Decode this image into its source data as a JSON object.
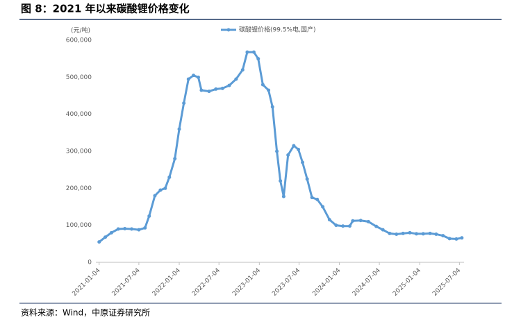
{
  "title": "图 8：2021 年以来碳酸锂价格变化",
  "source": "资料来源：Wind，中原证券研究所",
  "chart_data": {
    "type": "line",
    "y_axis_label": "(元/吨)",
    "x": [
      "2021-01-04",
      "2021-02-01",
      "2021-03-01",
      "2021-04-01",
      "2021-05-01",
      "2021-06-01",
      "2021-07-04",
      "2021-08-01",
      "2021-08-20",
      "2021-09-15",
      "2021-10-10",
      "2021-11-01",
      "2021-11-20",
      "2021-12-15",
      "2022-01-04",
      "2022-01-25",
      "2022-02-15",
      "2022-03-10",
      "2022-04-01",
      "2022-04-15",
      "2022-05-20",
      "2022-06-20",
      "2022-07-20",
      "2022-08-20",
      "2022-09-20",
      "2022-10-20",
      "2022-11-10",
      "2022-12-10",
      "2022-12-30",
      "2023-01-20",
      "2023-02-15",
      "2023-03-05",
      "2023-03-25",
      "2023-04-10",
      "2023-04-25",
      "2023-05-15",
      "2023-06-10",
      "2023-07-01",
      "2023-07-20",
      "2023-08-10",
      "2023-09-01",
      "2023-09-25",
      "2023-10-20",
      "2023-11-20",
      "2023-12-20",
      "2024-01-20",
      "2024-02-20",
      "2024-03-05",
      "2024-04-10",
      "2024-05-15",
      "2024-06-20",
      "2024-07-20",
      "2024-08-20",
      "2024-09-20",
      "2024-10-20",
      "2024-11-20",
      "2024-12-20",
      "2025-01-20",
      "2025-02-20",
      "2025-03-20",
      "2025-04-20",
      "2025-05-20",
      "2025-06-20",
      "2025-07-15"
    ],
    "series": [
      {
        "name": "碳酸锂价格(99.5%电,国产)",
        "color": "#5b9bd5",
        "values": [
          55000,
          68000,
          80000,
          90000,
          91000,
          90000,
          88000,
          93000,
          125000,
          180000,
          195000,
          200000,
          230000,
          280000,
          360000,
          430000,
          495000,
          505000,
          500000,
          465000,
          462000,
          468000,
          470000,
          478000,
          495000,
          520000,
          568000,
          568000,
          550000,
          480000,
          465000,
          420000,
          300000,
          220000,
          178000,
          290000,
          315000,
          305000,
          270000,
          225000,
          175000,
          170000,
          150000,
          115000,
          100000,
          98000,
          98000,
          112000,
          113000,
          110000,
          97000,
          88000,
          78000,
          76000,
          78000,
          80000,
          77000,
          77000,
          78000,
          76000,
          72000,
          64000,
          63000,
          66000
        ]
      }
    ],
    "xlim": [
      "2020-12-20",
      "2025-07-25"
    ],
    "xticks": [
      "2021-01-04",
      "2021-07-04",
      "2022-01-04",
      "2022-07-04",
      "2023-01-04",
      "2023-07-04",
      "2024-01-04",
      "2024-07-04",
      "2025-01-04",
      "2025-07-04"
    ],
    "ylim": [
      0,
      600000
    ],
    "yticks": [
      0,
      {
        "value": 100000,
        "label": "100,000"
      },
      {
        "value": 200000,
        "label": "200,000"
      },
      {
        "value": 300000,
        "label": "300,000"
      },
      {
        "value": 400000,
        "label": "400,000"
      },
      {
        "value": 500000,
        "label": "500,000"
      },
      {
        "value": 600000,
        "label": "600,000"
      }
    ],
    "legend": "top"
  }
}
